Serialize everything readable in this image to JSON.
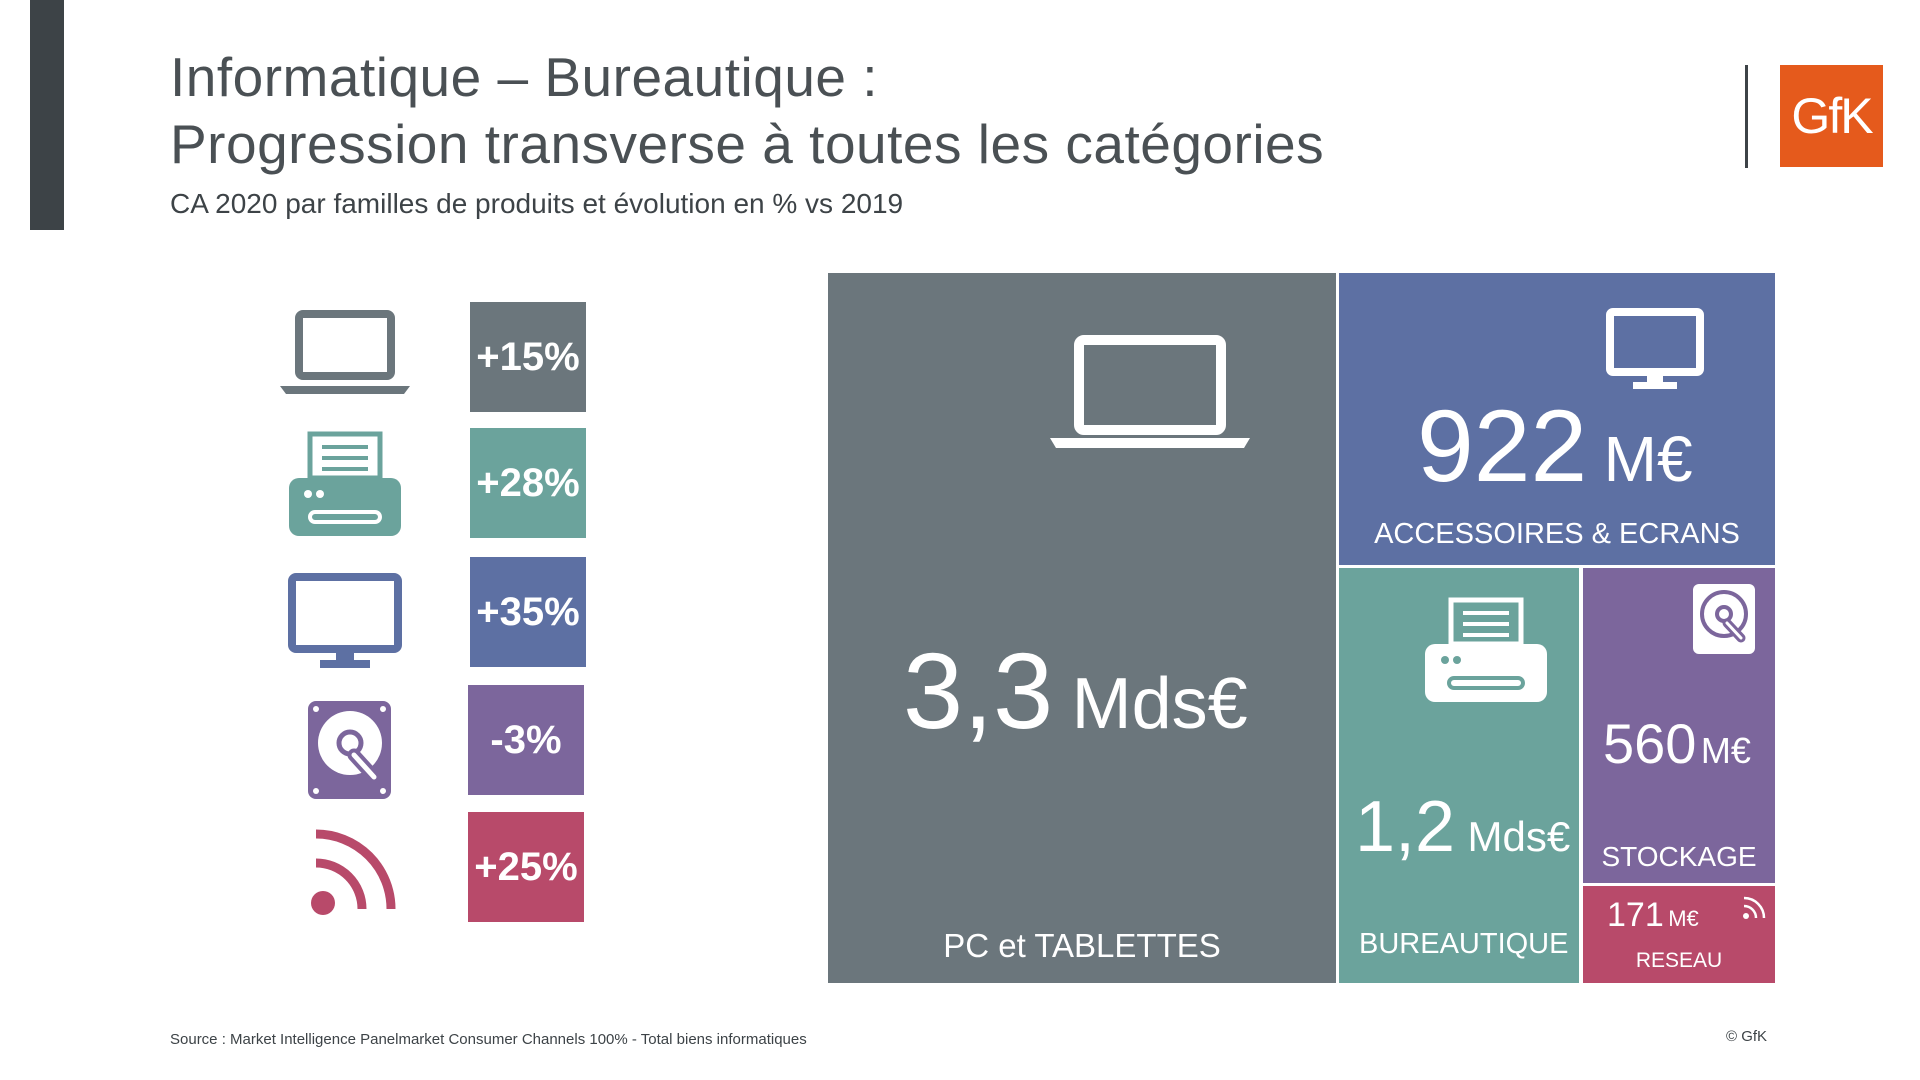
{
  "header": {
    "title_line1": "Informatique – Bureautique :",
    "title_line2": "Progression transverse à toutes les catégories",
    "subtitle": "CA 2020 par familles de produits et évolution en % vs 2019"
  },
  "logo": {
    "text": "GfK",
    "color": "#e55a1c"
  },
  "legend": [
    {
      "icon": "laptop-icon",
      "growth": "+15%",
      "color": "#6b767c"
    },
    {
      "icon": "printer-icon",
      "growth": "+28%",
      "color": "#6ba39c"
    },
    {
      "icon": "monitor-icon",
      "growth": "+35%",
      "color": "#5d70a3"
    },
    {
      "icon": "hard-drive-icon",
      "growth": "-3%",
      "color": "#7c669c"
    },
    {
      "icon": "wifi-icon",
      "growth": "+25%",
      "color": "#b84a6a"
    }
  ],
  "treemap": {
    "pc": {
      "value": "3,3",
      "unit": "Mds€",
      "label": "PC et TABLETTES",
      "icon": "laptop-icon",
      "color": "#6b767c"
    },
    "accessoires": {
      "value": "922",
      "unit": "M€",
      "label": "ACCESSOIRES & ECRANS",
      "icon": "monitor-icon",
      "color": "#5d70a3"
    },
    "bureautique": {
      "value": "1,2",
      "unit": "Mds€",
      "label": "BUREAUTIQUE",
      "icon": "printer-icon",
      "color": "#6ba39c"
    },
    "stockage": {
      "value": "560",
      "unit": "M€",
      "label": "STOCKAGE",
      "icon": "hard-drive-icon",
      "color": "#7c669c"
    },
    "reseau": {
      "value": "171",
      "unit": "M€",
      "label": "RESEAU",
      "icon": "wifi-icon",
      "color": "#b84a6a"
    }
  },
  "footer": {
    "source": "Source : Market Intelligence Panelmarket Consumer Channels 100% - Total biens informatiques",
    "copyright": "© GfK"
  }
}
